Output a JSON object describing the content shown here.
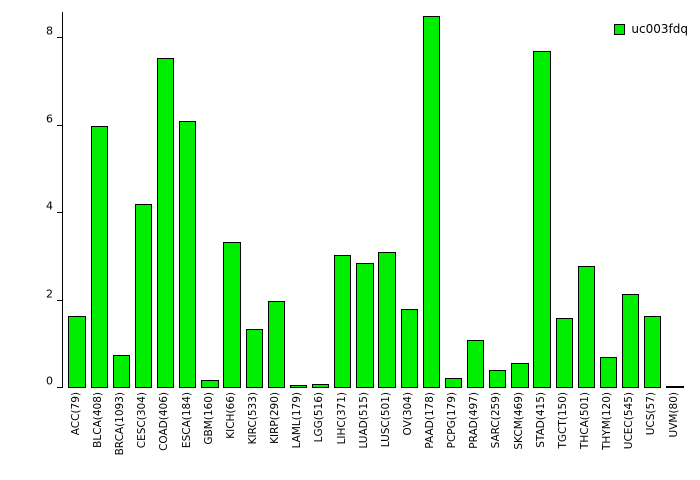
{
  "chart_data": {
    "type": "bar",
    "title": "",
    "xlabel": "",
    "ylabel": "",
    "legend": "uc003fdq",
    "legend_position": "top-right",
    "bar_color": "#00EE00",
    "bar_border_color": "#000000",
    "grid": false,
    "ylim": [
      0,
      8.6
    ],
    "yticks": [
      0,
      2,
      4,
      6,
      8
    ],
    "categories": [
      "ACC(79)",
      "BLCA(408)",
      "BRCA(1093)",
      "CESC(304)",
      "COAD(406)",
      "ESCA(184)",
      "GBM(160)",
      "KICH(66)",
      "KIRC(533)",
      "KIRP(290)",
      "LAML(179)",
      "LGG(516)",
      "LIHC(371)",
      "LUAD(515)",
      "LUSC(501)",
      "OV(304)",
      "PAAD(178)",
      "PCPG(179)",
      "PRAD(497)",
      "SARC(259)",
      "SKCM(469)",
      "STAD(415)",
      "TGCT(150)",
      "THCA(501)",
      "THYM(120)",
      "UCEC(545)",
      "UCS(57)",
      "UVM(80)"
    ],
    "values": [
      1.65,
      6.0,
      0.75,
      4.2,
      7.55,
      6.1,
      0.18,
      3.35,
      1.35,
      2.0,
      0.08,
      0.1,
      3.05,
      2.85,
      3.1,
      1.8,
      8.5,
      0.22,
      1.1,
      0.42,
      0.58,
      7.7,
      1.6,
      2.8,
      0.72,
      2.15,
      1.65,
      0.05
    ]
  }
}
